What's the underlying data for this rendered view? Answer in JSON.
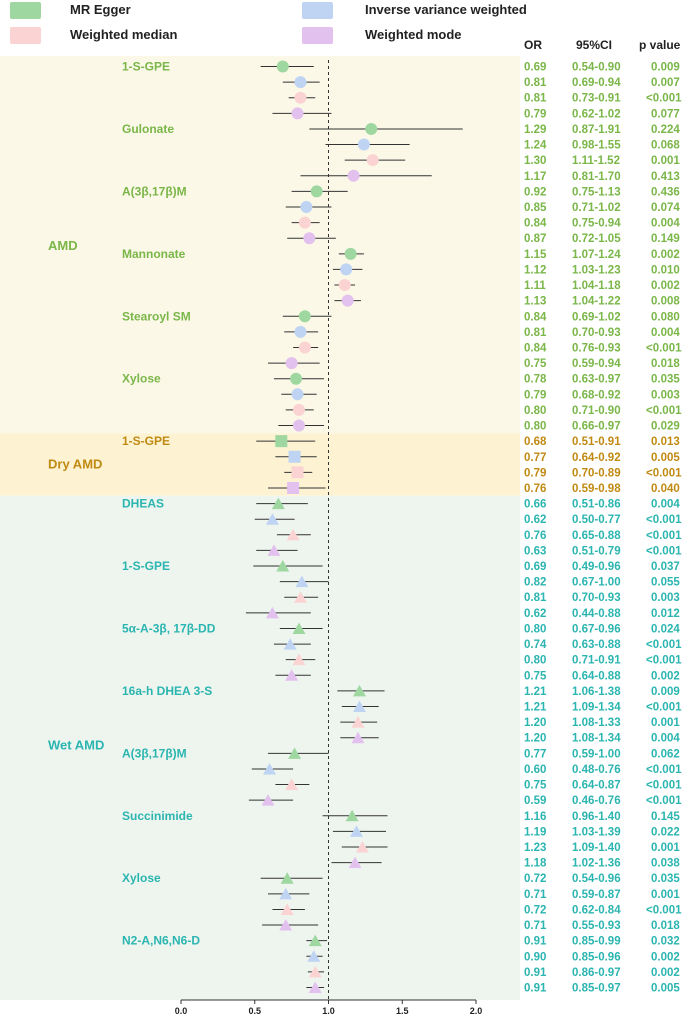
{
  "chart_data": {
    "type": "forest",
    "x_axis": {
      "range": [
        0.0,
        2.0
      ],
      "ticks": [
        "0.0",
        "0.5",
        "1.0",
        "1.5",
        "2.0"
      ],
      "reference_line": 1.0
    },
    "legend": [
      {
        "label": "MR Egger",
        "color": "#9fd7a0"
      },
      {
        "label": "Inverse variance weighted",
        "color": "#bfd4f3"
      },
      {
        "label": "Weighted median",
        "color": "#fbd3d3"
      },
      {
        "label": "Weighted mode",
        "color": "#e3c1ef"
      }
    ],
    "columns": {
      "or": "OR",
      "ci": "95%CI",
      "p": "p value"
    },
    "groups": [
      {
        "name": "AMD",
        "text_color": "#7ab648",
        "band_color": "#fbf8e7",
        "marker": "circle",
        "exposures": [
          {
            "name": "1-S-GPE",
            "rows": [
              {
                "or": 0.69,
                "lo": 0.54,
                "hi": 0.9,
                "or_text": "0.69",
                "ci_text": "0.54-0.90",
                "p_text": "0.009"
              },
              {
                "or": 0.81,
                "lo": 0.69,
                "hi": 0.94,
                "or_text": "0.81",
                "ci_text": "0.69-0.94",
                "p_text": "0.007"
              },
              {
                "or": 0.81,
                "lo": 0.73,
                "hi": 0.91,
                "or_text": "0.81",
                "ci_text": "0.73-0.91",
                "p_text": "<0.001"
              },
              {
                "or": 0.79,
                "lo": 0.62,
                "hi": 1.02,
                "or_text": "0.79",
                "ci_text": "0.62-1.02",
                "p_text": "0.077"
              }
            ]
          },
          {
            "name": "Gulonate",
            "rows": [
              {
                "or": 1.29,
                "lo": 0.87,
                "hi": 1.91,
                "or_text": "1.29",
                "ci_text": "0.87-1.91",
                "p_text": "0.224"
              },
              {
                "or": 1.24,
                "lo": 0.98,
                "hi": 1.55,
                "or_text": "1.24",
                "ci_text": "0.98-1.55",
                "p_text": "0.068"
              },
              {
                "or": 1.3,
                "lo": 1.11,
                "hi": 1.52,
                "or_text": "1.30",
                "ci_text": "1.11-1.52",
                "p_text": "0.001"
              },
              {
                "or": 1.17,
                "lo": 0.81,
                "hi": 1.7,
                "or_text": "1.17",
                "ci_text": "0.81-1.70",
                "p_text": "0.413"
              }
            ]
          },
          {
            "name": "A(3β,17β)M",
            "rows": [
              {
                "or": 0.92,
                "lo": 0.75,
                "hi": 1.13,
                "or_text": "0.92",
                "ci_text": "0.75-1.13",
                "p_text": "0.436"
              },
              {
                "or": 0.85,
                "lo": 0.71,
                "hi": 1.02,
                "or_text": "0.85",
                "ci_text": "0.71-1.02",
                "p_text": "0.074"
              },
              {
                "or": 0.84,
                "lo": 0.75,
                "hi": 0.94,
                "or_text": "0.84",
                "ci_text": "0.75-0.94",
                "p_text": "0.004"
              },
              {
                "or": 0.87,
                "lo": 0.72,
                "hi": 1.05,
                "or_text": "0.87",
                "ci_text": "0.72-1.05",
                "p_text": "0.149"
              }
            ]
          },
          {
            "name": "Mannonate",
            "rows": [
              {
                "or": 1.15,
                "lo": 1.07,
                "hi": 1.24,
                "or_text": "1.15",
                "ci_text": "1.07-1.24",
                "p_text": "0.002"
              },
              {
                "or": 1.12,
                "lo": 1.03,
                "hi": 1.23,
                "or_text": "1.12",
                "ci_text": "1.03-1.23",
                "p_text": "0.010"
              },
              {
                "or": 1.11,
                "lo": 1.04,
                "hi": 1.18,
                "or_text": "1.11",
                "ci_text": "1.04-1.18",
                "p_text": "0.002"
              },
              {
                "or": 1.13,
                "lo": 1.04,
                "hi": 1.22,
                "or_text": "1.13",
                "ci_text": "1.04-1.22",
                "p_text": "0.008"
              }
            ]
          },
          {
            "name": "Stearoyl SM",
            "rows": [
              {
                "or": 0.84,
                "lo": 0.69,
                "hi": 1.02,
                "or_text": "0.84",
                "ci_text": "0.69-1.02",
                "p_text": "0.080"
              },
              {
                "or": 0.81,
                "lo": 0.7,
                "hi": 0.93,
                "or_text": "0.81",
                "ci_text": "0.70-0.93",
                "p_text": "0.004"
              },
              {
                "or": 0.84,
                "lo": 0.76,
                "hi": 0.93,
                "or_text": "0.84",
                "ci_text": "0.76-0.93",
                "p_text": "<0.001"
              },
              {
                "or": 0.75,
                "lo": 0.59,
                "hi": 0.94,
                "or_text": "0.75",
                "ci_text": "0.59-0.94",
                "p_text": "0.018"
              }
            ]
          },
          {
            "name": "Xylose",
            "rows": [
              {
                "or": 0.78,
                "lo": 0.63,
                "hi": 0.97,
                "or_text": "0.78",
                "ci_text": "0.63-0.97",
                "p_text": "0.035"
              },
              {
                "or": 0.79,
                "lo": 0.68,
                "hi": 0.92,
                "or_text": "0.79",
                "ci_text": "0.68-0.92",
                "p_text": "0.003"
              },
              {
                "or": 0.8,
                "lo": 0.71,
                "hi": 0.9,
                "or_text": "0.80",
                "ci_text": "0.71-0.90",
                "p_text": "<0.001"
              },
              {
                "or": 0.8,
                "lo": 0.66,
                "hi": 0.97,
                "or_text": "0.80",
                "ci_text": "0.66-0.97",
                "p_text": "0.029"
              }
            ]
          }
        ]
      },
      {
        "name": "Dry AMD",
        "text_color": "#c08a12",
        "band_color": "#fdf3d3",
        "marker": "square",
        "exposures": [
          {
            "name": "1-S-GPE",
            "rows": [
              {
                "or": 0.68,
                "lo": 0.51,
                "hi": 0.91,
                "or_text": "0.68",
                "ci_text": "0.51-0.91",
                "p_text": "0.013"
              },
              {
                "or": 0.77,
                "lo": 0.64,
                "hi": 0.92,
                "or_text": "0.77",
                "ci_text": "0.64-0.92",
                "p_text": "0.005"
              },
              {
                "or": 0.79,
                "lo": 0.7,
                "hi": 0.89,
                "or_text": "0.79",
                "ci_text": "0.70-0.89",
                "p_text": "<0.001"
              },
              {
                "or": 0.76,
                "lo": 0.59,
                "hi": 0.98,
                "or_text": "0.76",
                "ci_text": "0.59-0.98",
                "p_text": "0.040"
              }
            ]
          }
        ]
      },
      {
        "name": "Wet AMD",
        "text_color": "#2bb5b0",
        "band_color": "#eef5ef",
        "marker": "triangle",
        "exposures": [
          {
            "name": "DHEAS",
            "rows": [
              {
                "or": 0.66,
                "lo": 0.51,
                "hi": 0.86,
                "or_text": "0.66",
                "ci_text": "0.51-0.86",
                "p_text": "0.004"
              },
              {
                "or": 0.62,
                "lo": 0.5,
                "hi": 0.77,
                "or_text": "0.62",
                "ci_text": "0.50-0.77",
                "p_text": "<0.001"
              },
              {
                "or": 0.76,
                "lo": 0.65,
                "hi": 0.88,
                "or_text": "0.76",
                "ci_text": "0.65-0.88",
                "p_text": "<0.001"
              },
              {
                "or": 0.63,
                "lo": 0.51,
                "hi": 0.79,
                "or_text": "0.63",
                "ci_text": "0.51-0.79",
                "p_text": "<0.001"
              }
            ]
          },
          {
            "name": "1-S-GPE",
            "rows": [
              {
                "or": 0.69,
                "lo": 0.49,
                "hi": 0.96,
                "or_text": "0.69",
                "ci_text": "0.49-0.96",
                "p_text": "0.037"
              },
              {
                "or": 0.82,
                "lo": 0.67,
                "hi": 1.0,
                "or_text": "0.82",
                "ci_text": "0.67-1.00",
                "p_text": "0.055"
              },
              {
                "or": 0.81,
                "lo": 0.7,
                "hi": 0.93,
                "or_text": "0.81",
                "ci_text": "0.70-0.93",
                "p_text": "0.003"
              },
              {
                "or": 0.62,
                "lo": 0.44,
                "hi": 0.88,
                "or_text": "0.62",
                "ci_text": "0.44-0.88",
                "p_text": "0.012"
              }
            ]
          },
          {
            "name": "5α-A-3β, 17β-DD",
            "rows": [
              {
                "or": 0.8,
                "lo": 0.67,
                "hi": 0.96,
                "or_text": "0.80",
                "ci_text": "0.67-0.96",
                "p_text": "0.024"
              },
              {
                "or": 0.74,
                "lo": 0.63,
                "hi": 0.88,
                "or_text": "0.74",
                "ci_text": "0.63-0.88",
                "p_text": "<0.001"
              },
              {
                "or": 0.8,
                "lo": 0.71,
                "hi": 0.91,
                "or_text": "0.80",
                "ci_text": "0.71-0.91",
                "p_text": "<0.001"
              },
              {
                "or": 0.75,
                "lo": 0.64,
                "hi": 0.88,
                "or_text": "0.75",
                "ci_text": "0.64-0.88",
                "p_text": "0.002"
              }
            ]
          },
          {
            "name": "16a-h DHEA 3-S",
            "rows": [
              {
                "or": 1.21,
                "lo": 1.06,
                "hi": 1.38,
                "or_text": "1.21",
                "ci_text": "1.06-1.38",
                "p_text": "0.009"
              },
              {
                "or": 1.21,
                "lo": 1.09,
                "hi": 1.34,
                "or_text": "1.21",
                "ci_text": "1.09-1.34",
                "p_text": "<0.001"
              },
              {
                "or": 1.2,
                "lo": 1.08,
                "hi": 1.33,
                "or_text": "1.20",
                "ci_text": "1.08-1.33",
                "p_text": "0.001"
              },
              {
                "or": 1.2,
                "lo": 1.08,
                "hi": 1.34,
                "or_text": "1.20",
                "ci_text": "1.08-1.34",
                "p_text": "0.004"
              }
            ]
          },
          {
            "name": "A(3β,17β)M",
            "rows": [
              {
                "or": 0.77,
                "lo": 0.59,
                "hi": 1.0,
                "or_text": "0.77",
                "ci_text": "0.59-1.00",
                "p_text": "0.062"
              },
              {
                "or": 0.6,
                "lo": 0.48,
                "hi": 0.76,
                "or_text": "0.60",
                "ci_text": "0.48-0.76",
                "p_text": "<0.001"
              },
              {
                "or": 0.75,
                "lo": 0.64,
                "hi": 0.87,
                "or_text": "0.75",
                "ci_text": "0.64-0.87",
                "p_text": "<0.001"
              },
              {
                "or": 0.59,
                "lo": 0.46,
                "hi": 0.76,
                "or_text": "0.59",
                "ci_text": "0.46-0.76",
                "p_text": "<0.001"
              }
            ]
          },
          {
            "name": "Succinimide",
            "rows": [
              {
                "or": 1.16,
                "lo": 0.96,
                "hi": 1.4,
                "or_text": "1.16",
                "ci_text": "0.96-1.40",
                "p_text": "0.145"
              },
              {
                "or": 1.19,
                "lo": 1.03,
                "hi": 1.39,
                "or_text": "1.19",
                "ci_text": "1.03-1.39",
                "p_text": "0.022"
              },
              {
                "or": 1.23,
                "lo": 1.09,
                "hi": 1.4,
                "or_text": "1.23",
                "ci_text": "1.09-1.40",
                "p_text": "0.001"
              },
              {
                "or": 1.18,
                "lo": 1.02,
                "hi": 1.36,
                "or_text": "1.18",
                "ci_text": "1.02-1.36",
                "p_text": "0.038"
              }
            ]
          },
          {
            "name": "Xylose",
            "rows": [
              {
                "or": 0.72,
                "lo": 0.54,
                "hi": 0.96,
                "or_text": "0.72",
                "ci_text": "0.54-0.96",
                "p_text": "0.035"
              },
              {
                "or": 0.71,
                "lo": 0.59,
                "hi": 0.87,
                "or_text": "0.71",
                "ci_text": "0.59-0.87",
                "p_text": "0.001"
              },
              {
                "or": 0.72,
                "lo": 0.62,
                "hi": 0.84,
                "or_text": "0.72",
                "ci_text": "0.62-0.84",
                "p_text": "<0.001"
              },
              {
                "or": 0.71,
                "lo": 0.55,
                "hi": 0.93,
                "or_text": "0.71",
                "ci_text": "0.55-0.93",
                "p_text": "0.018"
              }
            ]
          },
          {
            "name": "N2-A,N6,N6-D",
            "rows": [
              {
                "or": 0.91,
                "lo": 0.85,
                "hi": 0.99,
                "or_text": "0.91",
                "ci_text": "0.85-0.99",
                "p_text": "0.032"
              },
              {
                "or": 0.9,
                "lo": 0.85,
                "hi": 0.96,
                "or_text": "0.90",
                "ci_text": "0.85-0.96",
                "p_text": "0.002"
              },
              {
                "or": 0.91,
                "lo": 0.86,
                "hi": 0.97,
                "or_text": "0.91",
                "ci_text": "0.86-0.97",
                "p_text": "0.002"
              },
              {
                "or": 0.91,
                "lo": 0.85,
                "hi": 0.97,
                "or_text": "0.91",
                "ci_text": "0.85-0.97",
                "p_text": "0.005"
              }
            ]
          }
        ]
      }
    ]
  }
}
